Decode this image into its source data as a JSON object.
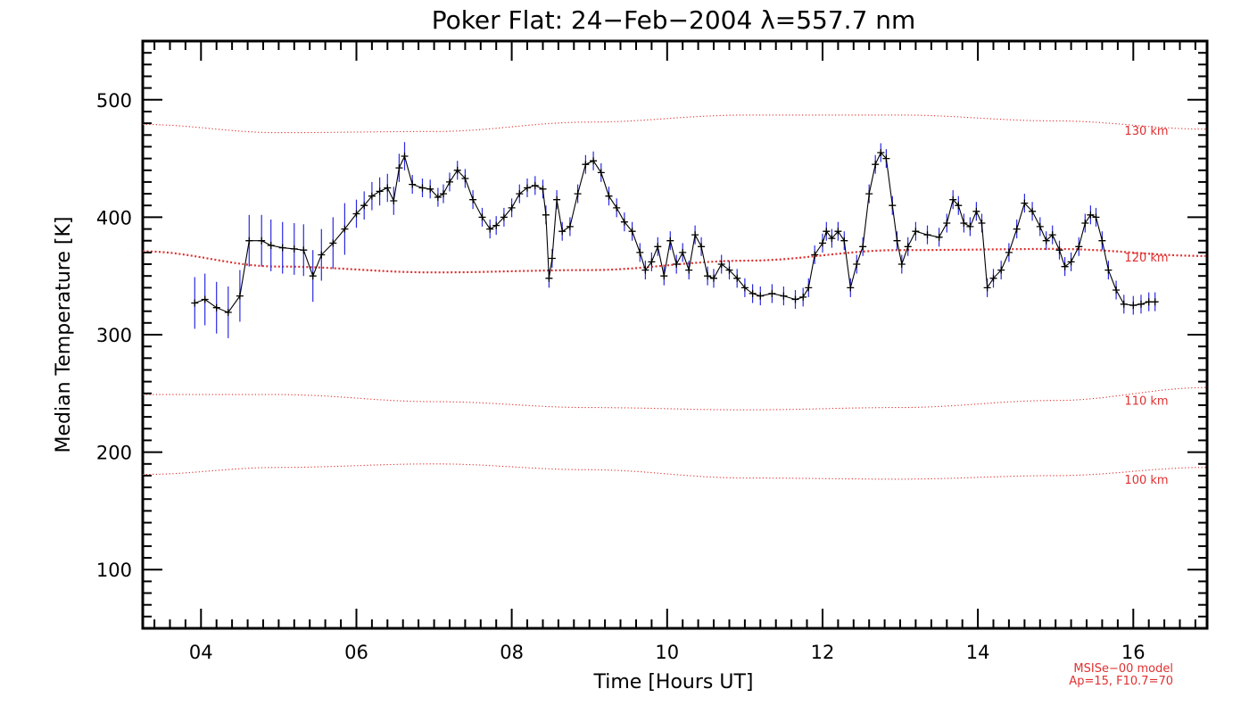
{
  "chart_data": {
    "type": "line",
    "title": "Poker Flat: 24−Feb−2004 λ=557.7 nm",
    "xlabel": "Time [Hours UT]",
    "ylabel": "Median Temperature [K]",
    "xlim": [
      3.25,
      16.95
    ],
    "ylim": [
      50,
      550
    ],
    "xticks": [
      4,
      6,
      8,
      10,
      12,
      14,
      16
    ],
    "xtick_labels": [
      "04",
      "06",
      "08",
      "10",
      "12",
      "14",
      "16"
    ],
    "yticks": [
      100,
      200,
      300,
      400,
      500
    ],
    "ytick_labels": [
      "100",
      "200",
      "300",
      "400",
      "500"
    ],
    "colors": {
      "data_line": "#000000",
      "error_bars": "#2a2ae0",
      "model": "#e03030"
    },
    "measured_series": {
      "name": "Median temperature",
      "points": [
        [
          3.92,
          327
        ],
        [
          4.05,
          330
        ],
        [
          4.2,
          323
        ],
        [
          4.35,
          319
        ],
        [
          4.5,
          333
        ],
        [
          4.62,
          380
        ],
        [
          4.78,
          380
        ],
        [
          4.9,
          376
        ],
        [
          5.05,
          374
        ],
        [
          5.2,
          373
        ],
        [
          5.32,
          372
        ],
        [
          5.44,
          350
        ],
        [
          5.55,
          368
        ],
        [
          5.7,
          378
        ],
        [
          5.85,
          390
        ],
        [
          6.0,
          403
        ],
        [
          6.1,
          410
        ],
        [
          6.2,
          418
        ],
        [
          6.3,
          422
        ],
        [
          6.4,
          425
        ],
        [
          6.48,
          414
        ],
        [
          6.55,
          442
        ],
        [
          6.62,
          452
        ],
        [
          6.72,
          428
        ],
        [
          6.85,
          425
        ],
        [
          6.95,
          424
        ],
        [
          7.05,
          417
        ],
        [
          7.12,
          420
        ],
        [
          7.2,
          430
        ],
        [
          7.3,
          440
        ],
        [
          7.4,
          433
        ],
        [
          7.5,
          415
        ],
        [
          7.62,
          400
        ],
        [
          7.72,
          390
        ],
        [
          7.8,
          393
        ],
        [
          7.9,
          400
        ],
        [
          8.0,
          408
        ],
        [
          8.1,
          420
        ],
        [
          8.2,
          425
        ],
        [
          8.3,
          427
        ],
        [
          8.4,
          424
        ],
        [
          8.44,
          402
        ],
        [
          8.48,
          348
        ],
        [
          8.52,
          365
        ],
        [
          8.58,
          415
        ],
        [
          8.65,
          388
        ],
        [
          8.75,
          392
        ],
        [
          8.85,
          420
        ],
        [
          8.95,
          445
        ],
        [
          9.05,
          448
        ],
        [
          9.15,
          438
        ],
        [
          9.25,
          418
        ],
        [
          9.35,
          408
        ],
        [
          9.45,
          396
        ],
        [
          9.55,
          388
        ],
        [
          9.65,
          370
        ],
        [
          9.72,
          355
        ],
        [
          9.8,
          362
        ],
        [
          9.88,
          375
        ],
        [
          9.96,
          350
        ],
        [
          10.04,
          380
        ],
        [
          10.12,
          360
        ],
        [
          10.2,
          370
        ],
        [
          10.28,
          355
        ],
        [
          10.36,
          385
        ],
        [
          10.44,
          375
        ],
        [
          10.52,
          350
        ],
        [
          10.6,
          348
        ],
        [
          10.7,
          360
        ],
        [
          10.8,
          355
        ],
        [
          10.9,
          348
        ],
        [
          11.0,
          340
        ],
        [
          11.1,
          335
        ],
        [
          11.2,
          333
        ],
        [
          11.35,
          335
        ],
        [
          11.5,
          333
        ],
        [
          11.65,
          330
        ],
        [
          11.75,
          332
        ],
        [
          11.82,
          340
        ],
        [
          11.9,
          368
        ],
        [
          12.0,
          378
        ],
        [
          12.05,
          388
        ],
        [
          12.12,
          382
        ],
        [
          12.2,
          388
        ],
        [
          12.28,
          380
        ],
        [
          12.36,
          340
        ],
        [
          12.44,
          360
        ],
        [
          12.52,
          375
        ],
        [
          12.6,
          420
        ],
        [
          12.68,
          445
        ],
        [
          12.75,
          455
        ],
        [
          12.82,
          450
        ],
        [
          12.9,
          410
        ],
        [
          12.96,
          380
        ],
        [
          13.02,
          360
        ],
        [
          13.1,
          375
        ],
        [
          13.2,
          388
        ],
        [
          13.35,
          385
        ],
        [
          13.5,
          383
        ],
        [
          13.6,
          395
        ],
        [
          13.68,
          415
        ],
        [
          13.75,
          410
        ],
        [
          13.82,
          395
        ],
        [
          13.9,
          392
        ],
        [
          13.98,
          405
        ],
        [
          14.05,
          395
        ],
        [
          14.12,
          340
        ],
        [
          14.2,
          348
        ],
        [
          14.3,
          355
        ],
        [
          14.4,
          370
        ],
        [
          14.5,
          390
        ],
        [
          14.6,
          412
        ],
        [
          14.7,
          405
        ],
        [
          14.8,
          392
        ],
        [
          14.88,
          380
        ],
        [
          14.96,
          385
        ],
        [
          15.05,
          372
        ],
        [
          15.12,
          358
        ],
        [
          15.2,
          362
        ],
        [
          15.3,
          375
        ],
        [
          15.38,
          395
        ],
        [
          15.45,
          402
        ],
        [
          15.52,
          400
        ],
        [
          15.6,
          380
        ],
        [
          15.68,
          355
        ],
        [
          15.78,
          338
        ],
        [
          15.88,
          326
        ],
        [
          16.0,
          325
        ],
        [
          16.1,
          326
        ],
        [
          16.2,
          328
        ],
        [
          16.28,
          328
        ]
      ]
    },
    "model": {
      "name": "MSISe−00 model",
      "params": "Ap=15, F10.7=70",
      "series": [
        {
          "name": "130 km",
          "label_value": 474,
          "x": [
            3.25,
            5.0,
            7.0,
            9.0,
            11.0,
            13.0,
            15.0,
            16.95
          ],
          "values": [
            479,
            472,
            473,
            481,
            487,
            487,
            482,
            475
          ]
        },
        {
          "name": "120 km",
          "label_value": 366,
          "x": [
            3.25,
            5.0,
            7.0,
            9.0,
            11.0,
            13.0,
            15.0,
            16.95
          ],
          "values": [
            371,
            358,
            353,
            355,
            363,
            372,
            373,
            367
          ]
        },
        {
          "name": "110 km",
          "label_value": 244,
          "x": [
            3.25,
            5.0,
            7.0,
            9.0,
            11.0,
            13.0,
            15.0,
            16.95
          ],
          "values": [
            249,
            249,
            243,
            238,
            236,
            238,
            244,
            255
          ]
        },
        {
          "name": "100 km",
          "label_value": 177,
          "x": [
            3.25,
            5.0,
            7.0,
            9.0,
            11.0,
            13.0,
            15.0,
            16.95
          ],
          "values": [
            181,
            187,
            190,
            185,
            178,
            177,
            180,
            187
          ]
        }
      ]
    }
  }
}
